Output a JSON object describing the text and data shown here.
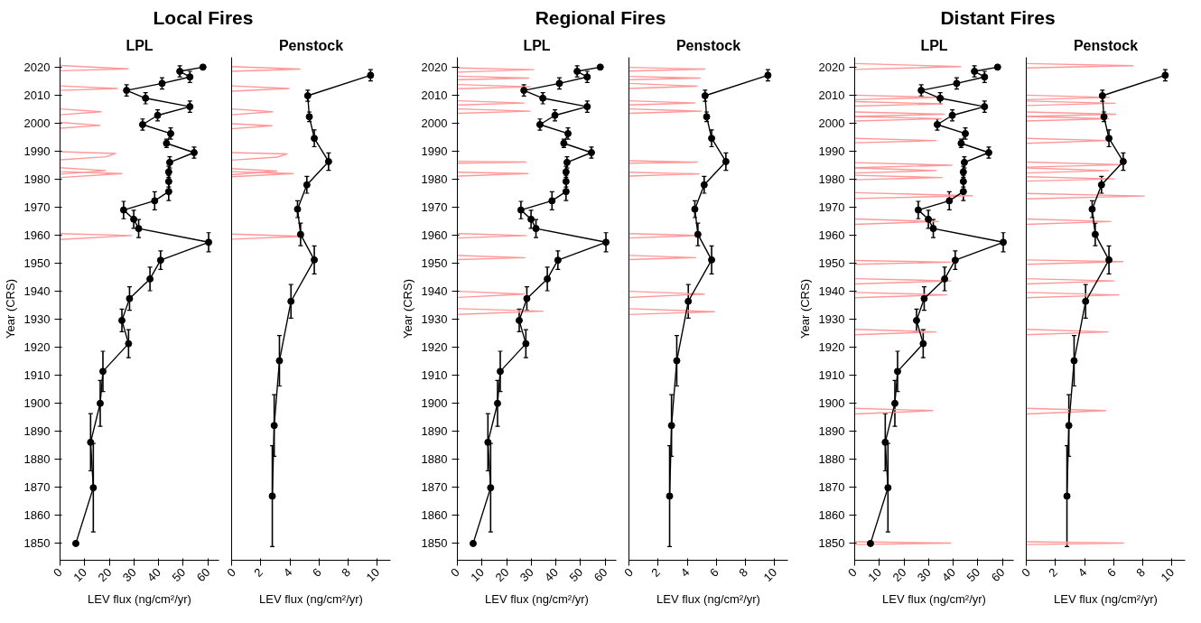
{
  "chart_data": [
    {
      "type": "line",
      "title": "Local Fires",
      "subtitle": "LPL",
      "xlabel": "LEV flux (ng/cm²/yr)",
      "ylabel": "Year (CRS)",
      "xlim": [
        0,
        64.5
      ],
      "xticks": [
        0,
        10,
        20,
        30,
        40,
        50,
        60
      ],
      "ylim": [
        1844,
        2023.5
      ],
      "yticks": [
        1850,
        1860,
        1870,
        1880,
        1890,
        1900,
        1910,
        1920,
        1930,
        1940,
        1950,
        1960,
        1970,
        1980,
        1990,
        2000,
        2010,
        2020
      ],
      "grid": false,
      "series": [
        {
          "color": "#ff9999",
          "marker": "none",
          "x": [
            0,
            27.6,
            0,
            null,
            0,
            23.2,
            0,
            null,
            0,
            16.7,
            0,
            null,
            0,
            16.3,
            0,
            null,
            0,
            22.6,
            18.7,
            0,
            null,
            0,
            18.5,
            0,
            null,
            0,
            25.1,
            0,
            null,
            0,
            29.1,
            0
          ],
          "values": [
            2020.6,
            2019.4,
            2018.7,
            null,
            2013.3,
            2012.4,
            2011.7,
            null,
            2005.1,
            2004.1,
            2003.0,
            null,
            2000.3,
            1999.2,
            1998.2,
            null,
            1989.8,
            1989.2,
            1988.0,
            1986.9,
            null,
            1984.1,
            1983.1,
            1981.8,
            null,
            1982.7,
            1982.0,
            1980.6,
            null,
            1960.6,
            1959.9,
            1958.5
          ]
        },
        {
          "color": "#000000",
          "marker": "circle",
          "x": [
            58.0,
            48.6,
            52.7,
            41.4,
            27.0,
            34.7,
            52.7,
            39.6,
            33.5,
            44.9,
            43.2,
            54.4,
            44.5,
            44.1,
            44.1,
            44.1,
            38.4,
            25.8,
            29.9,
            31.9,
            60.3,
            40.8,
            36.5,
            28.2,
            25.1,
            27.8,
            17.4,
            16.3,
            12.4,
            13.5,
            6.4
          ],
          "values": [
            2020,
            2018.5,
            2016.5,
            2014.2,
            2011.7,
            2008.9,
            2005.9,
            2002.8,
            1999.5,
            1996.3,
            1992.8,
            1989.5,
            1986,
            1982.6,
            1979.2,
            1975.6,
            1972.3,
            1969,
            1965.7,
            1962.4,
            1957.5,
            1951.1,
            1944.4,
            1937.4,
            1929.6,
            1921.3,
            1911.4,
            1900,
            1886.1,
            1869.9,
            1850
          ],
          "errors": [
            null,
            2,
            2,
            2,
            2,
            2,
            2,
            2,
            2,
            2,
            1.5,
            2,
            2,
            2,
            2,
            3.2,
            3.2,
            3.1,
            3.2,
            3.2,
            3.4,
            3.3,
            4.2,
            4.2,
            4,
            5,
            7.2,
            8.2,
            10.2,
            15.8,
            null
          ]
        }
      ]
    },
    {
      "type": "line",
      "subtitle": "Penstock",
      "xlabel": "LEV flux (ng/cm²/yr)",
      "xlim": [
        0,
        10.9
      ],
      "xticks": [
        0,
        2,
        4,
        6,
        8,
        10
      ],
      "ylim": [
        1844,
        2023.5
      ],
      "yticks": [
        1850,
        1860,
        1870,
        1880,
        1890,
        1900,
        1910,
        1920,
        1930,
        1940,
        1950,
        1960,
        1970,
        1980,
        1990,
        2000,
        2010,
        2020
      ],
      "tick_labels": "x",
      "grid": false,
      "series": [
        {
          "color": "#ff9999",
          "marker": "none",
          "x": [
            0,
            4.69,
            0,
            null,
            0,
            3.94,
            0,
            null,
            0,
            2.81,
            0,
            null,
            0,
            2.77,
            0,
            null,
            0,
            3.8,
            3.13,
            0,
            null,
            0,
            3.09,
            0,
            null,
            0,
            4.22,
            0,
            null,
            0,
            4.95,
            0
          ],
          "values": [
            2020.2,
            2019.3,
            2018.5,
            null,
            2013.3,
            2012.4,
            2011.4,
            null,
            2005.1,
            2004.1,
            2003.0,
            null,
            1999.8,
            1999.1,
            1998.0,
            null,
            1989.5,
            1989.0,
            1987.9,
            1986.8,
            null,
            1983.8,
            1982.9,
            1981.6,
            null,
            1982.7,
            1982.0,
            1980.9,
            null,
            1960.4,
            1959.6,
            1958.6
          ]
        },
        {
          "color": "#000000",
          "marker": "circle",
          "x": [
            9.53,
            5.22,
            5.33,
            5.67,
            6.65,
            5.16,
            4.52,
            4.73,
            5.67,
            4.07,
            3.28,
            2.92,
            2.79
          ],
          "values": [
            2017.1,
            2009.8,
            2002.3,
            1994.6,
            1986.3,
            1978.0,
            1969.3,
            1960.3,
            1951.2,
            1936.4,
            1915.2,
            1892.1,
            1866.9
          ],
          "errors": [
            2,
            2,
            1.7,
            3,
            3.1,
            3,
            3,
            4,
            5,
            6,
            9,
            11,
            18
          ]
        }
      ]
    },
    {
      "type": "line",
      "title": "Regional Fires",
      "subtitle": "LPL",
      "xlabel": "LEV flux (ng/cm²/yr)",
      "ylabel": "Year (CRS)",
      "xlim": [
        0,
        64.5
      ],
      "xticks": [
        0,
        10,
        20,
        30,
        40,
        50,
        60
      ],
      "ylim": [
        1844,
        2023.5
      ],
      "yticks": [
        1850,
        1860,
        1870,
        1880,
        1890,
        1900,
        1910,
        1920,
        1930,
        1940,
        1950,
        1960,
        1970,
        1980,
        1990,
        2000,
        2010,
        2020
      ],
      "grid": false,
      "series": [
        {
          "color": "#ff9999",
          "marker": "none",
          "x": [
            0,
            30.9,
            0,
            null,
            0,
            29.0,
            0,
            null,
            0,
            29.6,
            0,
            null,
            0,
            27.1,
            0,
            null,
            0,
            29.6,
            0,
            null,
            0,
            27.8,
            0,
            null,
            0,
            28.6,
            0,
            null,
            0,
            28.0,
            0,
            null,
            0,
            27.4,
            0,
            null,
            0,
            27.1,
            0,
            null,
            0,
            34.8,
            0
          ],
          "values": [
            2019.7,
            2019.1,
            2018.2,
            null,
            2016.8,
            2016.1,
            2015.5,
            null,
            2013.8,
            2013.0,
            2012.3,
            null,
            2008.0,
            2007.2,
            2006.5,
            null,
            2005.1,
            2004.3,
            2003.5,
            null,
            1986.4,
            1986.1,
            1985.7,
            null,
            1982.5,
            1982.0,
            1981.1,
            null,
            1960.6,
            1959.9,
            1959.0,
            null,
            1952.8,
            1952.0,
            1951.3,
            null,
            1940.0,
            1939.0,
            1937.8,
            null,
            1933.8,
            1932.9,
            1931.7
          ]
        },
        {
          "color": "#000000",
          "marker": "circle",
          "x": [
            58.0,
            48.6,
            52.7,
            41.4,
            27.0,
            34.7,
            52.7,
            39.6,
            33.5,
            44.9,
            43.2,
            54.4,
            44.5,
            44.1,
            44.1,
            44.1,
            38.4,
            25.8,
            29.9,
            31.9,
            60.3,
            40.8,
            36.5,
            28.2,
            25.1,
            27.8,
            17.4,
            16.3,
            12.4,
            13.5,
            6.4
          ],
          "values": [
            2020,
            2018.5,
            2016.5,
            2014.2,
            2011.7,
            2008.9,
            2005.9,
            2002.8,
            1999.5,
            1996.3,
            1992.8,
            1989.5,
            1986,
            1982.6,
            1979.2,
            1975.6,
            1972.3,
            1969,
            1965.7,
            1962.4,
            1957.5,
            1951.1,
            1944.4,
            1937.4,
            1929.6,
            1921.3,
            1911.4,
            1900,
            1886.1,
            1869.9,
            1850
          ],
          "errors": [
            null,
            2,
            2,
            2,
            2,
            2,
            2,
            2,
            2,
            2,
            1.5,
            2,
            2,
            2,
            2,
            3.2,
            3.2,
            3.1,
            3.2,
            3.2,
            3.4,
            3.3,
            4.2,
            4.2,
            4,
            5,
            7.2,
            8.2,
            10.2,
            15.8,
            null
          ]
        }
      ]
    },
    {
      "type": "line",
      "subtitle": "Penstock",
      "xlabel": "LEV flux (ng/cm²/yr)",
      "xlim": [
        0,
        10.9
      ],
      "xticks": [
        0,
        2,
        4,
        6,
        8,
        10
      ],
      "ylim": [
        1844,
        2023.5
      ],
      "yticks": [
        1850,
        1860,
        1870,
        1880,
        1890,
        1900,
        1910,
        1920,
        1930,
        1940,
        1950,
        1960,
        1970,
        1980,
        1990,
        2000,
        2010,
        2020
      ],
      "tick_labels": "x",
      "grid": false,
      "series": [
        {
          "color": "#ff9999",
          "marker": "none",
          "x": [
            0,
            5.21,
            0,
            null,
            0,
            4.88,
            0,
            null,
            0,
            4.68,
            0,
            null,
            0,
            4.54,
            0,
            null,
            0,
            4.98,
            0,
            null,
            0,
            4.68,
            0,
            null,
            0,
            4.82,
            0,
            null,
            0,
            4.82,
            0,
            null,
            0,
            4.58,
            0,
            null,
            0,
            5.17,
            0,
            null,
            0,
            5.87,
            0
          ],
          "values": [
            2019.9,
            2019.3,
            2018.6,
            null,
            2016.7,
            2016.1,
            2015.5,
            null,
            2014.2,
            2013.2,
            2012.4,
            null,
            2008.0,
            2007.2,
            2006.5,
            null,
            2005.1,
            2004.3,
            2003.5,
            null,
            1986.6,
            1986.1,
            1985.7,
            null,
            1982.5,
            1981.9,
            1981.1,
            null,
            1960.6,
            1959.9,
            1959.0,
            null,
            1952.8,
            1952.0,
            1951.3,
            null,
            1940.0,
            1939.0,
            1937.8,
            null,
            1933.8,
            1932.7,
            1931.7
          ]
        },
        {
          "color": "#000000",
          "marker": "circle",
          "x": [
            9.53,
            5.22,
            5.33,
            5.67,
            6.65,
            5.16,
            4.52,
            4.73,
            5.67,
            4.07,
            3.28,
            2.92,
            2.79
          ],
          "values": [
            2017.1,
            2009.8,
            2002.3,
            1994.6,
            1986.3,
            1978.0,
            1969.3,
            1960.3,
            1951.2,
            1936.4,
            1915.2,
            1892.1,
            1866.9
          ],
          "errors": [
            2,
            2,
            1.7,
            3,
            3.1,
            3,
            3,
            4,
            5,
            6,
            9,
            11,
            18
          ]
        }
      ]
    },
    {
      "type": "line",
      "title": "Distant Fires",
      "subtitle": "LPL",
      "xlabel": "LEV flux (ng/cm²/yr)",
      "ylabel": "Year (CRS)",
      "xlim": [
        0,
        64.5
      ],
      "xticks": [
        0,
        10,
        20,
        30,
        40,
        50,
        60
      ],
      "ylim": [
        1844,
        2023.5
      ],
      "yticks": [
        1850,
        1860,
        1870,
        1880,
        1890,
        1900,
        1910,
        1920,
        1930,
        1940,
        1950,
        1960,
        1970,
        1980,
        1990,
        2000,
        2010,
        2020
      ],
      "grid": false,
      "series": [
        {
          "color": "#ff9999",
          "marker": "none",
          "x": [
            0,
            43.0,
            0,
            null,
            0,
            36.4,
            0,
            null,
            0,
            35.5,
            0,
            null,
            0,
            36.4,
            0,
            null,
            0,
            35.1,
            0,
            null,
            0,
            33.1,
            0,
            null,
            0,
            39.4,
            0,
            null,
            0,
            33.1,
            0,
            null,
            0,
            35.5,
            0,
            null,
            0,
            47.7,
            0,
            null,
            0,
            34.0,
            0,
            null,
            0,
            39.0,
            0,
            null,
            0,
            39.0,
            0,
            null,
            0,
            37.3,
            0,
            null,
            0,
            33.1,
            0,
            null,
            0,
            31.7,
            0,
            null,
            0,
            39.0,
            0
          ],
          "values": [
            2021.3,
            2020.2,
            2019.2,
            null,
            2010.0,
            2009.2,
            2008.4,
            null,
            2007.7,
            2006.9,
            2006.1,
            null,
            2004.0,
            2003.2,
            2002.4,
            null,
            2002.4,
            2001.6,
            2000.8,
            null,
            1994.6,
            1993.8,
            1993.0,
            null,
            1985.9,
            1985.0,
            1984.1,
            null,
            1984.0,
            1983.1,
            1982.2,
            null,
            1981.4,
            1980.6,
            1979.8,
            null,
            1975.2,
            1974.1,
            1973.1,
            null,
            1965.8,
            1964.9,
            1963.9,
            null,
            1951.0,
            1950.4,
            1949.6,
            null,
            1944.5,
            1943.7,
            1942.6,
            null,
            1939.6,
            1938.7,
            1937.7,
            null,
            1926.4,
            1925.5,
            1924.5,
            null,
            1898.2,
            1897.4,
            1896.2,
            null,
            1850.6,
            1850.1,
            1849.6
          ]
        },
        {
          "color": "#000000",
          "marker": "circle",
          "x": [
            58.0,
            48.6,
            52.7,
            41.4,
            27.0,
            34.7,
            52.7,
            39.6,
            33.5,
            44.9,
            43.2,
            54.4,
            44.5,
            44.1,
            44.1,
            44.1,
            38.4,
            25.8,
            29.9,
            31.9,
            60.3,
            40.8,
            36.5,
            28.2,
            25.1,
            27.8,
            17.4,
            16.3,
            12.4,
            13.5,
            6.4
          ],
          "values": [
            2020,
            2018.5,
            2016.5,
            2014.2,
            2011.7,
            2008.9,
            2005.9,
            2002.8,
            1999.5,
            1996.3,
            1992.8,
            1989.5,
            1986,
            1982.6,
            1979.2,
            1975.6,
            1972.3,
            1969,
            1965.7,
            1962.4,
            1957.5,
            1951.1,
            1944.4,
            1937.4,
            1929.6,
            1921.3,
            1911.4,
            1900,
            1886.1,
            1869.9,
            1850
          ],
          "errors": [
            null,
            2,
            2,
            2,
            2,
            2,
            2,
            2,
            2,
            2,
            1.5,
            2,
            2,
            2,
            2,
            3.2,
            3.2,
            3.1,
            3.2,
            3.2,
            3.4,
            3.3,
            4.2,
            4.2,
            4,
            5,
            7.2,
            8.2,
            10.2,
            15.8,
            null
          ]
        }
      ]
    },
    {
      "type": "line",
      "subtitle": "Penstock",
      "xlabel": "LEV flux (ng/cm²/yr)",
      "xlim": [
        0,
        10.9
      ],
      "xticks": [
        0,
        2,
        4,
        6,
        8,
        10
      ],
      "ylim": [
        1844,
        2023.5
      ],
      "yticks": [
        1850,
        1860,
        1870,
        1880,
        1890,
        1900,
        1910,
        1920,
        1930,
        1940,
        1950,
        1960,
        1970,
        1980,
        1990,
        2000,
        2010,
        2020
      ],
      "tick_labels": "x",
      "grid": false,
      "series": [
        {
          "color": "#ff9999",
          "marker": "none",
          "x": [
            0,
            7.31,
            0,
            null,
            0,
            5.69,
            0,
            null,
            0,
            6.08,
            0,
            null,
            0,
            6.14,
            0,
            null,
            0,
            5.65,
            0,
            null,
            0,
            5.65,
            0,
            null,
            0,
            6.72,
            0,
            null,
            0,
            5.65,
            0,
            null,
            0,
            6.03,
            0,
            null,
            0,
            8.1,
            0,
            null,
            0,
            5.8,
            0,
            null,
            0,
            6.63,
            0,
            null,
            0,
            6.03,
            0,
            null,
            0,
            6.35,
            0,
            null,
            0,
            5.61,
            0,
            null,
            0,
            5.44,
            0,
            null,
            0,
            6.67,
            0
          ],
          "values": [
            2021.3,
            2020.5,
            2019.7,
            null,
            2010.0,
            2009.2,
            2008.4,
            null,
            2007.9,
            2007.1,
            2006.3,
            null,
            2004.0,
            2003.2,
            2002.4,
            null,
            2002.4,
            2001.6,
            2000.8,
            null,
            1994.6,
            1993.8,
            1992.8,
            null,
            1986.1,
            1985.2,
            1984.3,
            null,
            1984.0,
            1983.1,
            1982.2,
            null,
            1980.9,
            1980.1,
            1979.3,
            null,
            1974.9,
            1974.0,
            1973.0,
            null,
            1965.8,
            1964.9,
            1963.9,
            null,
            1951.2,
            1950.6,
            1949.6,
            null,
            1944.5,
            1943.7,
            1942.6,
            null,
            1939.6,
            1938.7,
            1937.7,
            null,
            1926.4,
            1925.5,
            1924.5,
            null,
            1898.2,
            1897.4,
            1896.2,
            null,
            1850.6,
            1850.1,
            1849.6
          ]
        },
        {
          "color": "#000000",
          "marker": "circle",
          "x": [
            9.53,
            5.22,
            5.33,
            5.67,
            6.65,
            5.16,
            4.52,
            4.73,
            5.67,
            4.07,
            3.28,
            2.92,
            2.79
          ],
          "values": [
            2017.1,
            2009.8,
            2002.3,
            1994.6,
            1986.3,
            1978.0,
            1969.3,
            1960.3,
            1951.2,
            1936.4,
            1915.2,
            1892.1,
            1866.9
          ],
          "errors": [
            2,
            2,
            1.7,
            3,
            3.1,
            3,
            3,
            4,
            5,
            6,
            9,
            11,
            18
          ]
        }
      ]
    }
  ]
}
